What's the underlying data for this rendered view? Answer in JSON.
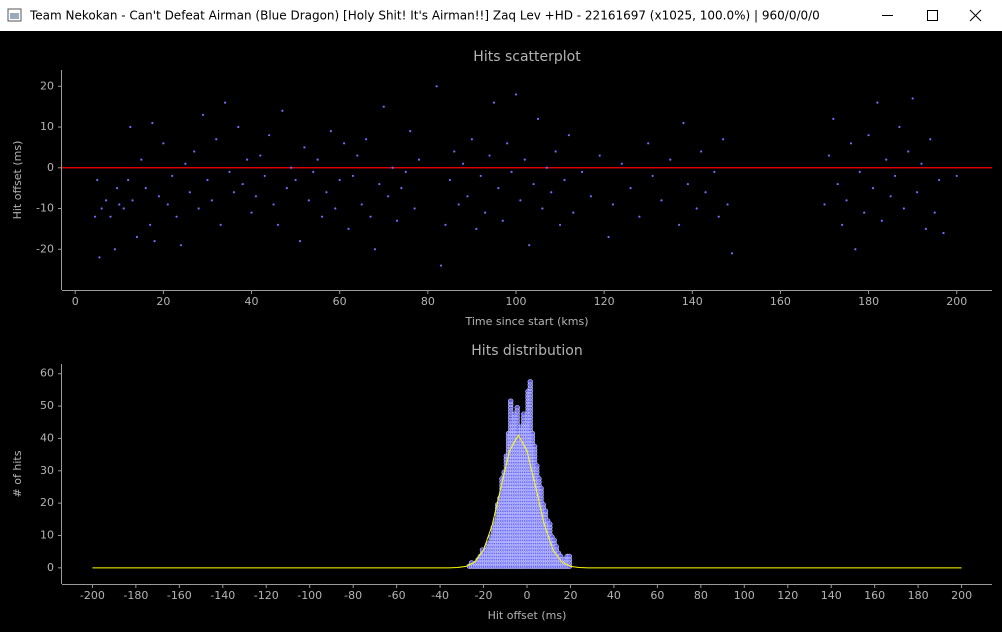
{
  "window_title": "Team Nekokan - Can't Defeat Airman (Blue Dragon) [Holy Shit! It's Airman!!] Zaq Lev +HD - 22161697 (x1025, 100.0%) | 960/0/0/0",
  "chart_data": [
    {
      "type": "scatter",
      "title": "Hits scatterplot",
      "xlabel": "Time since start (kms)",
      "ylabel": "Hit offset (ms)",
      "xlim": [
        -3,
        208
      ],
      "ylim": [
        -30,
        24
      ],
      "xticks": [
        0,
        20,
        40,
        60,
        80,
        100,
        120,
        140,
        160,
        180,
        200
      ],
      "yticks": [
        -20,
        -10,
        0,
        10,
        20
      ],
      "hline": 0,
      "hline_color": "#ff0000",
      "color": "#6f6fff",
      "x": [
        4.5,
        5,
        5.5,
        6,
        7,
        8,
        9,
        9.5,
        10,
        11,
        12,
        12.5,
        13,
        14,
        15,
        16,
        17,
        17.5,
        18,
        19,
        20,
        21,
        22,
        23,
        24,
        25,
        26,
        27,
        28,
        29,
        30,
        31,
        32,
        33,
        34,
        35,
        36,
        37,
        38,
        39,
        40,
        41,
        42,
        43,
        44,
        45,
        46,
        47,
        48,
        49,
        50,
        51,
        52,
        53,
        54,
        55,
        56,
        57,
        58,
        59,
        60,
        61,
        62,
        63,
        64,
        65,
        66,
        67,
        68,
        69,
        70,
        71,
        72,
        73,
        74,
        75,
        76,
        77,
        78,
        82,
        83,
        84,
        85,
        86,
        87,
        88,
        89,
        90,
        91,
        92,
        93,
        94,
        95,
        96,
        97,
        98,
        99,
        100,
        101,
        102,
        103,
        104,
        105,
        106,
        107,
        108,
        109,
        110,
        111,
        112,
        113,
        115,
        117,
        119,
        121,
        122,
        124,
        126,
        128,
        130,
        131,
        133,
        135,
        137,
        138,
        139,
        141,
        142,
        143,
        145,
        146,
        147,
        148,
        149,
        170,
        171,
        172,
        173,
        174,
        175,
        176,
        177,
        178,
        179,
        180,
        181,
        182,
        183,
        184,
        185,
        186,
        187,
        188,
        189,
        190,
        191,
        192,
        193,
        194,
        195,
        196,
        197,
        200
      ],
      "values": [
        -12,
        -3,
        -22,
        -10,
        -8,
        -12,
        -20,
        -5,
        -9,
        -10,
        -3,
        10,
        -8,
        -17,
        2,
        -5,
        -14,
        11,
        -18,
        -7,
        6,
        -9,
        -2,
        -12,
        -19,
        1,
        -6,
        4,
        -10,
        13,
        -3,
        -8,
        7,
        -14,
        16,
        -1,
        -6,
        10,
        -4,
        2,
        -11,
        -7,
        3,
        -2,
        8,
        -9,
        -14,
        14,
        -5,
        0,
        -3,
        -18,
        5,
        -8,
        -1,
        2,
        -12,
        -6,
        9,
        -10,
        -3,
        6,
        -15,
        -2,
        3,
        -9,
        7,
        -12,
        -20,
        -4,
        15,
        -7,
        0,
        -13,
        -5,
        -1,
        9,
        -10,
        2,
        20,
        -24,
        -14,
        -3,
        4,
        -9,
        1,
        -7,
        7,
        -15,
        -2,
        -11,
        3,
        16,
        -5,
        -13,
        6,
        -1,
        18,
        -8,
        2,
        -19,
        -4,
        12,
        -10,
        0,
        -6,
        4,
        -14,
        -3,
        8,
        -11,
        -1,
        -7,
        3,
        -17,
        -9,
        1,
        -5,
        -12,
        6,
        -2,
        -8,
        2,
        -14,
        11,
        -4,
        -10,
        4,
        -6,
        -1,
        -12,
        7,
        -9,
        -21,
        -9,
        3,
        12,
        -4,
        -14,
        -8,
        6,
        -20,
        -1,
        -11,
        8,
        -5,
        16,
        -13,
        2,
        -7,
        -2,
        10,
        -10,
        4,
        17,
        -6,
        1,
        -15,
        7,
        -11,
        -3,
        -16,
        -2
      ]
    },
    {
      "type": "histogram",
      "title": "Hits distribution",
      "xlabel": "Hit offset (ms)",
      "ylabel": "# of hits",
      "xlim": [
        -214,
        214
      ],
      "ylim": [
        -5,
        63
      ],
      "xticks": [
        -200,
        -180,
        -160,
        -140,
        -120,
        -100,
        -80,
        -60,
        -40,
        -20,
        0,
        20,
        40,
        60,
        80,
        100,
        120,
        140,
        160,
        180,
        200
      ],
      "yticks": [
        0,
        10,
        20,
        30,
        40,
        50,
        60
      ],
      "color": "#6b6bff",
      "bins": [
        -27,
        -26,
        -25,
        -24,
        -23,
        -22,
        -21,
        -20,
        -19,
        -18,
        -17,
        -16,
        -15,
        -14,
        -13,
        -12,
        -11,
        -10,
        -9,
        -8,
        -7,
        -6,
        -5,
        -4,
        -3,
        -2,
        -1,
        0,
        1,
        2,
        3,
        4,
        5,
        6,
        7,
        8,
        9,
        10,
        11,
        12,
        13,
        14,
        15,
        16,
        17,
        18,
        19,
        20
      ],
      "counts": [
        1,
        2,
        1,
        2,
        3,
        4,
        6,
        5,
        7,
        8,
        10,
        13,
        15,
        20,
        22,
        28,
        30,
        35,
        42,
        52,
        45,
        48,
        50,
        40,
        44,
        48,
        45,
        55,
        58,
        42,
        38,
        32,
        28,
        25,
        20,
        18,
        15,
        14,
        10,
        9,
        7,
        5,
        4,
        3,
        3,
        4,
        4
      ],
      "fit": {
        "color": "#ffff00",
        "x": [
          -200,
          -40,
          -36,
          -32,
          -28,
          -24,
          -20,
          -16,
          -12,
          -8,
          -4,
          0,
          4,
          8,
          12,
          16,
          20,
          24,
          28,
          200
        ],
        "values": [
          0,
          0,
          0,
          0.09,
          0.46,
          1.8,
          5.5,
          13.3,
          24.9,
          36.2,
          41,
          36.2,
          24.9,
          13.3,
          5.5,
          1.8,
          0.46,
          0.09,
          0,
          0
        ]
      }
    }
  ]
}
